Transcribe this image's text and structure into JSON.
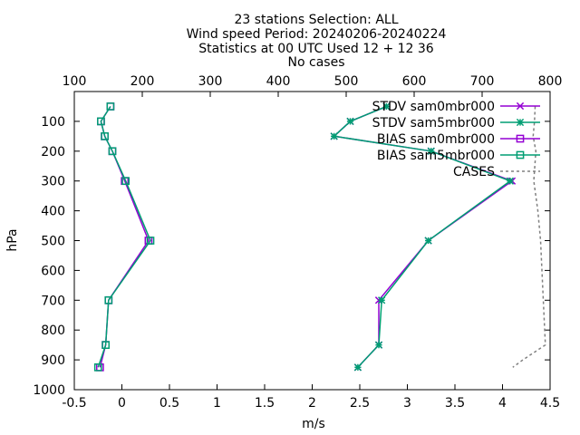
{
  "chart_data": {
    "type": "line",
    "title_lines": [
      "23 stations Selection: ALL",
      "Wind speed  Period: 20240206-20240224",
      "Statistics at 00 UTC  Used 12 + 12 36",
      "No cases"
    ],
    "xlabel": "m/s",
    "ylabel": "hPa",
    "x_bottom": {
      "range": [
        -0.5,
        4.5
      ],
      "ticks": [
        -0.5,
        0,
        0.5,
        1,
        1.5,
        2,
        2.5,
        3,
        3.5,
        4,
        4.5
      ]
    },
    "x_top": {
      "range": [
        100,
        800
      ],
      "ticks": [
        100,
        200,
        300,
        400,
        500,
        600,
        700,
        800
      ]
    },
    "y": {
      "range": [
        1000,
        0
      ],
      "ticks": [
        100,
        200,
        300,
        400,
        500,
        600,
        700,
        800,
        900,
        1000
      ]
    },
    "legend_position": "top-right",
    "grid": false,
    "series": [
      {
        "name": "STDV sam0mbr000",
        "color": "#9400d3",
        "marker": "x",
        "dash": false,
        "axis": "bottom",
        "points": [
          [
            2.78,
            50
          ],
          [
            2.4,
            100
          ],
          [
            2.23,
            150
          ],
          [
            3.25,
            200
          ],
          [
            4.1,
            300
          ],
          [
            3.22,
            500
          ],
          [
            2.7,
            700
          ],
          [
            2.7,
            850
          ],
          [
            2.48,
            925
          ]
        ]
      },
      {
        "name": "STDV sam5mbr000",
        "color": "#009e73",
        "marker": "star",
        "dash": false,
        "axis": "bottom",
        "points": [
          [
            2.78,
            50
          ],
          [
            2.4,
            100
          ],
          [
            2.23,
            150
          ],
          [
            3.25,
            200
          ],
          [
            4.08,
            300
          ],
          [
            3.22,
            500
          ],
          [
            2.73,
            700
          ],
          [
            2.7,
            850
          ],
          [
            2.48,
            925
          ]
        ]
      },
      {
        "name": "BIAS sam0mbr000",
        "color": "#9400d3",
        "marker": "square",
        "dash": false,
        "axis": "bottom",
        "points": [
          [
            -0.12,
            50
          ],
          [
            -0.22,
            100
          ],
          [
            -0.18,
            150
          ],
          [
            -0.1,
            200
          ],
          [
            0.03,
            300
          ],
          [
            0.28,
            500
          ],
          [
            -0.14,
            700
          ],
          [
            -0.17,
            850
          ],
          [
            -0.23,
            925
          ]
        ]
      },
      {
        "name": "BIAS sam5mbr000",
        "color": "#009e73",
        "marker": "square",
        "dash": false,
        "axis": "bottom",
        "points": [
          [
            -0.12,
            50
          ],
          [
            -0.22,
            100
          ],
          [
            -0.18,
            150
          ],
          [
            -0.1,
            200
          ],
          [
            0.04,
            300
          ],
          [
            0.3,
            500
          ],
          [
            -0.14,
            700
          ],
          [
            -0.17,
            850
          ],
          [
            -0.25,
            925
          ]
        ]
      },
      {
        "name": "CASES",
        "color": "#808080",
        "marker": "none",
        "dash": true,
        "axis": "top",
        "points": [
          [
            778,
            50
          ],
          [
            777,
            100
          ],
          [
            775,
            150
          ],
          [
            779,
            200
          ],
          [
            776,
            300
          ],
          [
            782,
            400
          ],
          [
            786,
            500
          ],
          [
            790,
            700
          ],
          [
            793,
            850
          ],
          [
            760,
            900
          ],
          [
            745,
            925
          ]
        ]
      }
    ]
  }
}
